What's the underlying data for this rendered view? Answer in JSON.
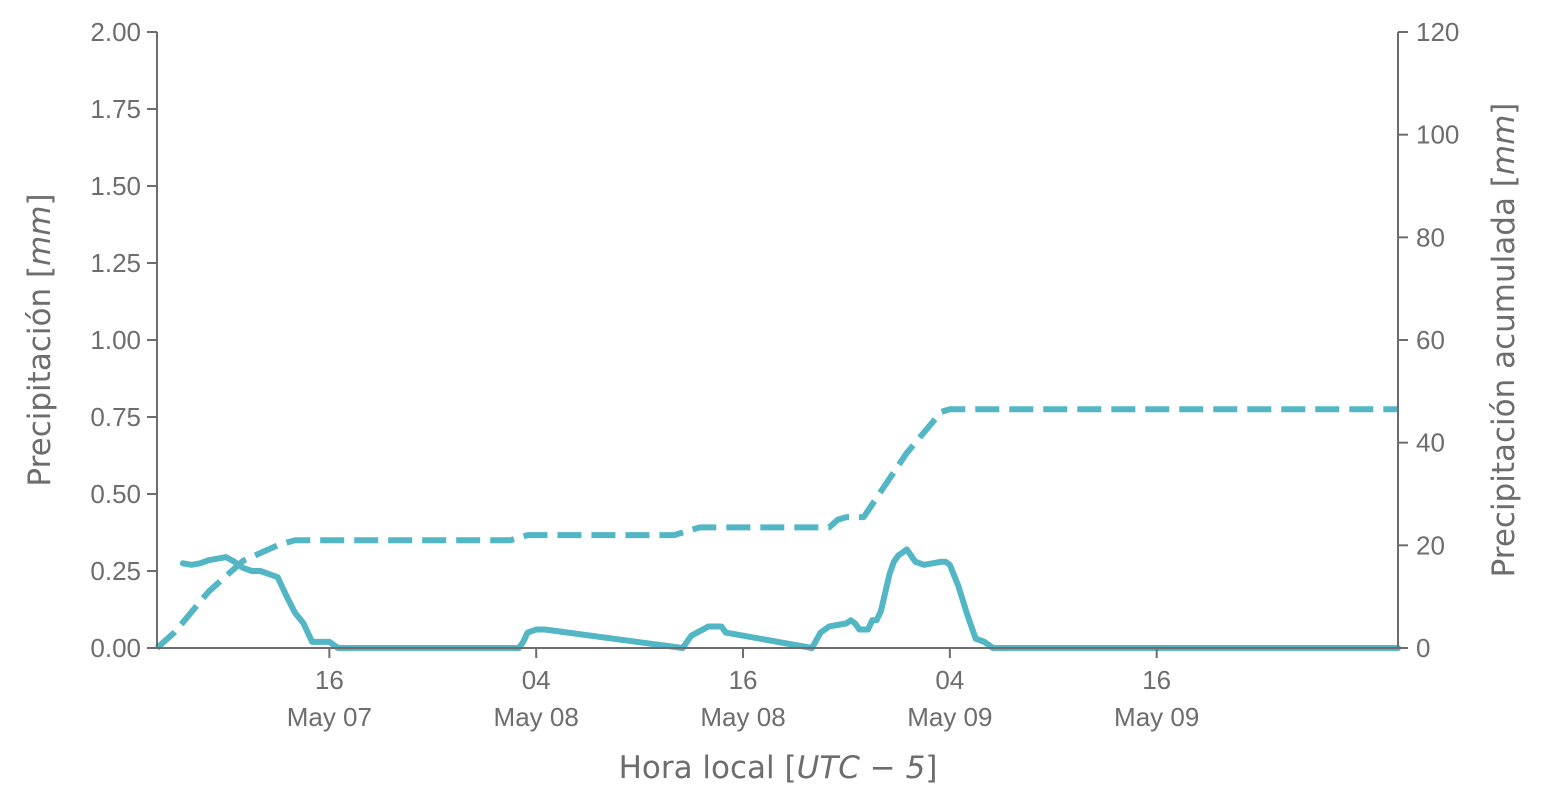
{
  "chart_data": {
    "type": "line",
    "xlabel": {
      "pre": "Hora local [",
      "math": "UTC − 5",
      "post": "]"
    },
    "ylabel_left": {
      "pre": "Precipitación [",
      "math": "mm",
      "post": "]"
    },
    "ylabel_right": {
      "pre": "Precipitación acumulada [",
      "math": "mm",
      "post": "]"
    },
    "x_unit": "hours",
    "xlim": [
      "2019-05-07 06:00",
      "2019-05-10 06:00"
    ],
    "ylim_left": [
      0,
      2.0
    ],
    "ylim_right": [
      0,
      120
    ],
    "yticks_left": [
      "0.00",
      "0.25",
      "0.50",
      "0.75",
      "1.00",
      "1.25",
      "1.50",
      "1.75",
      "2.00"
    ],
    "yticks_left_values": [
      0,
      0.25,
      0.5,
      0.75,
      1.0,
      1.25,
      1.5,
      1.75,
      2.0
    ],
    "yticks_right": [
      "0",
      "20",
      "40",
      "60",
      "80",
      "100",
      "120"
    ],
    "yticks_right_values": [
      0,
      20,
      40,
      60,
      80,
      100,
      120
    ],
    "xticks": [
      {
        "t": "2019-05-07 16:00",
        "line1": "16",
        "line2": "May 07"
      },
      {
        "t": "2019-05-08 04:00",
        "line1": "04",
        "line2": "May 08"
      },
      {
        "t": "2019-05-08 16:00",
        "line1": "16",
        "line2": "May 08"
      },
      {
        "t": "2019-05-09 04:00",
        "line1": "04",
        "line2": "May 09"
      },
      {
        "t": "2019-05-09 16:00",
        "line1": "16",
        "line2": "May 09"
      }
    ],
    "grid": false,
    "color": "#52b6c4",
    "series": [
      {
        "axis": "left",
        "style": "solid",
        "x": [
          "2019-05-07 07:30",
          "2019-05-07 08:00",
          "2019-05-07 08:30",
          "2019-05-07 09:00",
          "2019-05-07 09:30",
          "2019-05-07 10:00",
          "2019-05-07 10:30",
          "2019-05-07 11:00",
          "2019-05-07 11:30",
          "2019-05-07 12:00",
          "2019-05-07 12:30",
          "2019-05-07 13:00",
          "2019-05-07 13:15",
          "2019-05-07 13:30",
          "2019-05-07 14:00",
          "2019-05-07 14:30",
          "2019-05-07 14:45",
          "2019-05-07 15:00",
          "2019-05-07 15:30",
          "2019-05-07 16:00",
          "2019-05-07 16:30",
          "2019-05-08 03:00",
          "2019-05-08 03:15",
          "2019-05-08 03:30",
          "2019-05-08 04:00",
          "2019-05-08 04:15",
          "2019-05-08 04:30",
          "2019-05-08 12:30",
          "2019-05-08 12:45",
          "2019-05-08 13:00",
          "2019-05-08 14:00",
          "2019-05-08 14:30",
          "2019-05-08 14:45",
          "2019-05-08 15:00",
          "2019-05-08 20:00",
          "2019-05-08 20:30",
          "2019-05-08 21:00",
          "2019-05-08 22:00",
          "2019-05-08 22:15",
          "2019-05-08 22:30",
          "2019-05-08 22:45",
          "2019-05-08 23:00",
          "2019-05-08 23:15",
          "2019-05-08 23:30",
          "2019-05-08 23:45",
          "2019-05-09 00:00",
          "2019-05-09 00:15",
          "2019-05-09 00:30",
          "2019-05-09 00:45",
          "2019-05-09 01:00",
          "2019-05-09 01:15",
          "2019-05-09 01:30",
          "2019-05-09 01:45",
          "2019-05-09 02:00",
          "2019-05-09 02:30",
          "2019-05-09 03:00",
          "2019-05-09 03:30",
          "2019-05-09 03:45",
          "2019-05-09 04:00",
          "2019-05-09 04:30",
          "2019-05-09 05:00",
          "2019-05-09 05:30",
          "2019-05-09 06:00",
          "2019-05-09 06:30",
          "2019-05-10 06:00"
        ],
        "values": [
          0.275,
          0.27,
          0.275,
          0.285,
          0.29,
          0.295,
          0.28,
          0.26,
          0.25,
          0.25,
          0.24,
          0.23,
          0.2,
          0.17,
          0.115,
          0.08,
          0.05,
          0.02,
          0.02,
          0.02,
          0.0,
          0.0,
          0.02,
          0.05,
          0.06,
          0.06,
          0.06,
          0.0,
          0.02,
          0.04,
          0.07,
          0.07,
          0.07,
          0.05,
          0.0,
          0.05,
          0.07,
          0.08,
          0.09,
          0.08,
          0.06,
          0.06,
          0.06,
          0.09,
          0.09,
          0.12,
          0.18,
          0.24,
          0.28,
          0.3,
          0.31,
          0.32,
          0.3,
          0.28,
          0.27,
          0.275,
          0.28,
          0.28,
          0.27,
          0.2,
          0.11,
          0.03,
          0.02,
          0.0,
          0.0
        ]
      },
      {
        "axis": "right",
        "style": "dashed",
        "x": [
          "2019-05-07 06:00",
          "2019-05-07 07:00",
          "2019-05-07 08:00",
          "2019-05-07 09:00",
          "2019-05-07 10:00",
          "2019-05-07 11:00",
          "2019-05-07 12:00",
          "2019-05-07 13:00",
          "2019-05-07 13:30",
          "2019-05-07 14:00",
          "2019-05-07 15:00",
          "2019-05-08 02:30",
          "2019-05-08 03:00",
          "2019-05-08 03:30",
          "2019-05-08 04:00",
          "2019-05-08 12:00",
          "2019-05-08 13:30",
          "2019-05-08 14:00",
          "2019-05-08 21:00",
          "2019-05-08 21:30",
          "2019-05-08 22:00",
          "2019-05-08 23:00",
          "2019-05-08 23:30",
          "2019-05-09 00:30",
          "2019-05-09 01:30",
          "2019-05-09 02:30",
          "2019-05-09 03:30",
          "2019-05-09 04:00",
          "2019-05-09 05:00",
          "2019-05-10 06:00"
        ],
        "values": [
          0,
          3,
          7,
          11,
          14,
          17,
          18.5,
          20,
          20.5,
          21,
          21,
          21,
          21.5,
          22,
          22,
          22,
          23.5,
          23.5,
          23.5,
          25,
          25.5,
          25.5,
          28,
          33,
          38,
          42,
          46,
          46.5,
          46.5,
          46.5
        ]
      }
    ]
  }
}
